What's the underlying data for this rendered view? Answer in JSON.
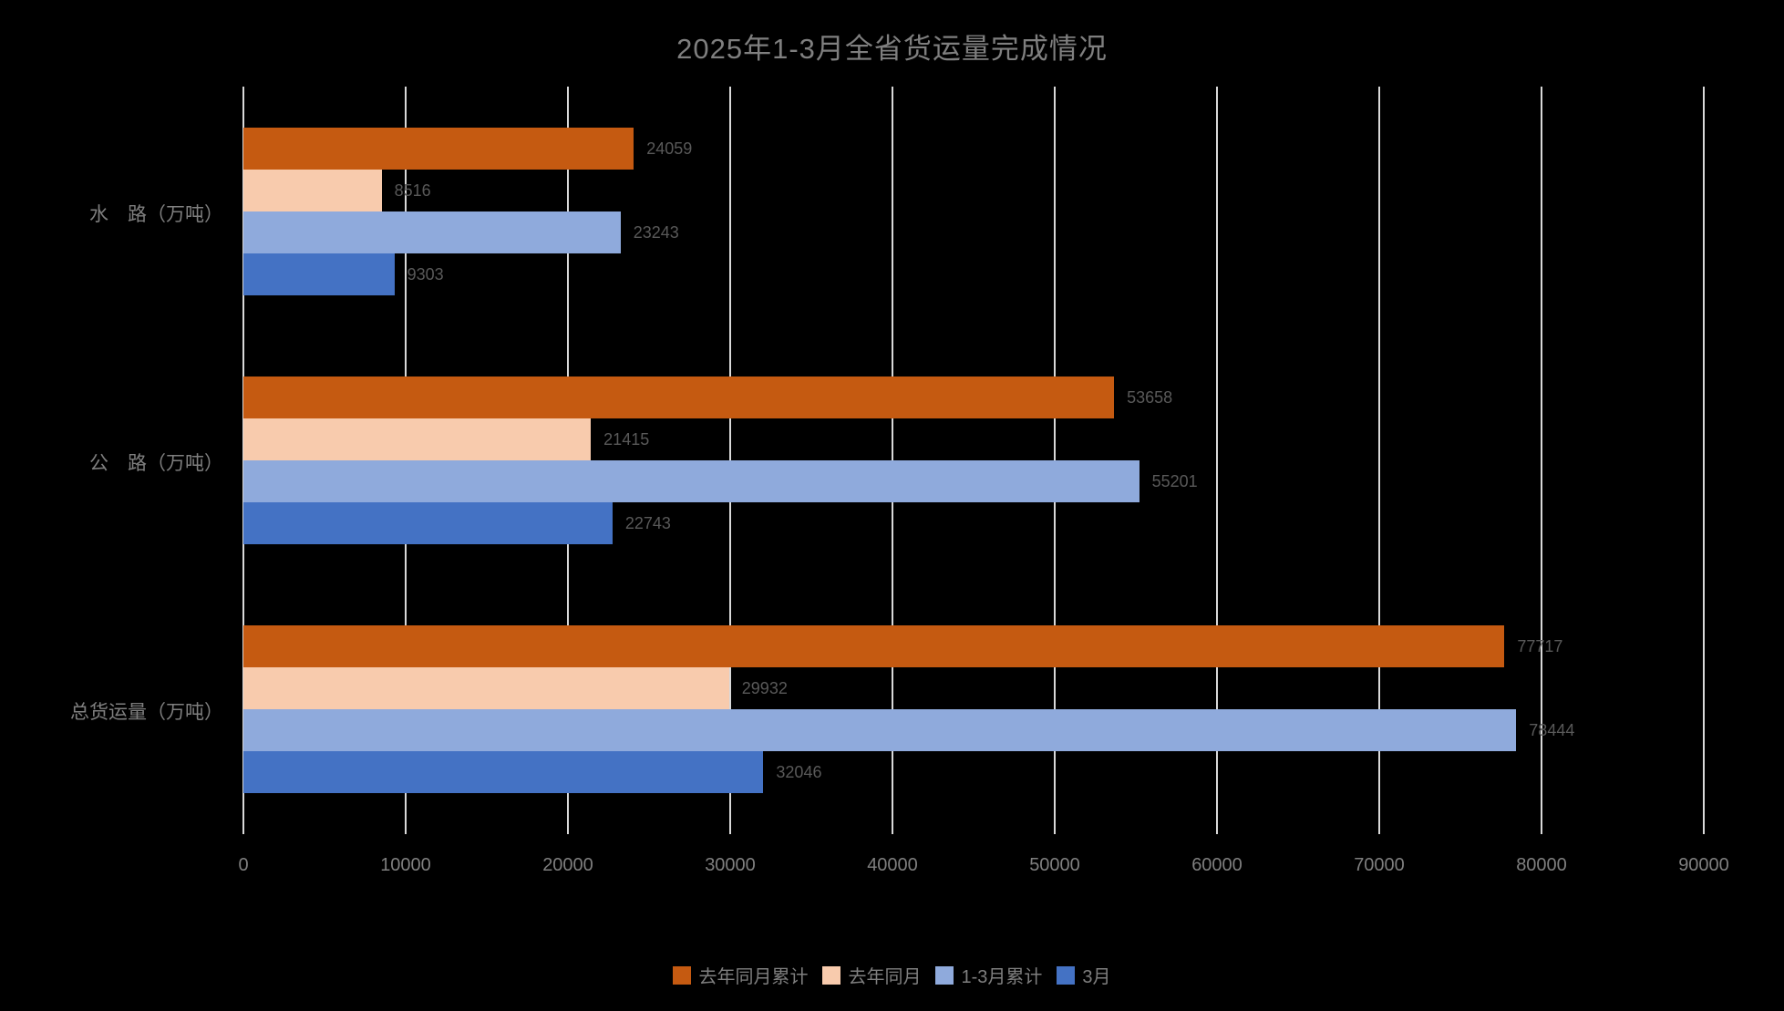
{
  "title": "2025年1-3月全省货运量完成情况",
  "chart_data": {
    "type": "bar",
    "orientation": "horizontal",
    "title": "2025年1-3月全省货运量完成情况",
    "categories": [
      "水　路（万吨）",
      "公　路（万吨）",
      "总货运量（万吨）"
    ],
    "series": [
      {
        "name": "去年同月累计",
        "color": "#C55A11",
        "values": [
          24059,
          53658,
          77717
        ]
      },
      {
        "name": "去年同月",
        "color": "#F8CBAD",
        "values": [
          8516,
          21415,
          29932
        ]
      },
      {
        "name": "1-3月累计",
        "color": "#8FAADC",
        "values": [
          23243,
          55201,
          78444
        ]
      },
      {
        "name": "3月",
        "color": "#4472C4",
        "values": [
          9303,
          22743,
          32046
        ]
      }
    ],
    "xlim": [
      0,
      90000
    ],
    "x_ticks": [
      0,
      10000,
      20000,
      30000,
      40000,
      50000,
      60000,
      70000,
      80000,
      90000
    ],
    "grid": "vertical-only",
    "gridline_color": "#D9D9D9",
    "background_color": "#000000",
    "text_color": "#7F7F7F",
    "data_label_color": "#595959",
    "legend_position": "bottom",
    "data_labels_visible": true
  }
}
